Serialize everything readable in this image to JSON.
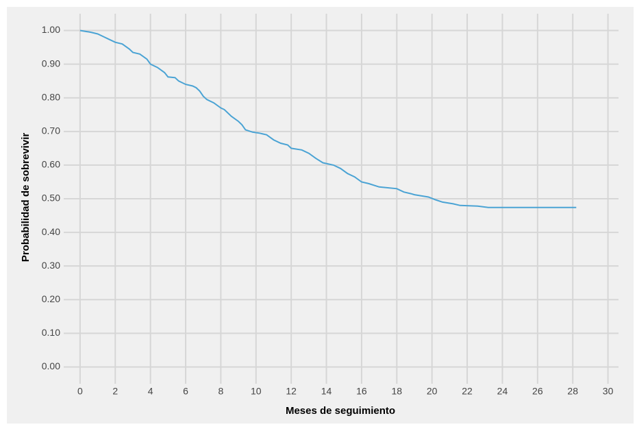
{
  "chart_data": {
    "type": "line",
    "x_label": "Meses de seguimiento",
    "y_label": "Probabilidad de sobrevivir",
    "x": [
      0,
      0.6,
      1,
      1.4,
      1.6,
      2,
      2.4,
      2.8,
      3,
      3.4,
      3.8,
      4,
      4.4,
      4.8,
      5,
      5.4,
      5.6,
      6,
      6.4,
      6.6,
      6.8,
      7,
      7.2,
      7.6,
      8,
      8.2,
      8.6,
      9,
      9.2,
      9.4,
      9.8,
      10.2,
      10.6,
      11,
      11.4,
      11.8,
      12,
      12.6,
      13,
      13.4,
      13.8,
      14.4,
      14.8,
      15.2,
      15.6,
      16,
      16.4,
      17,
      18,
      18.4,
      18.8,
      19,
      19.8,
      20.2,
      20.6,
      21.2,
      21.6,
      22.6,
      23.2,
      28.2
    ],
    "series": [
      {
        "color": "#4aa3d4",
        "values": [
          1.0,
          0.995,
          0.99,
          0.98,
          0.975,
          0.965,
          0.96,
          0.945,
          0.935,
          0.93,
          0.915,
          0.9,
          0.89,
          0.875,
          0.862,
          0.86,
          0.85,
          0.84,
          0.835,
          0.83,
          0.82,
          0.805,
          0.795,
          0.785,
          0.77,
          0.765,
          0.745,
          0.73,
          0.72,
          0.705,
          0.698,
          0.695,
          0.69,
          0.675,
          0.665,
          0.66,
          0.65,
          0.645,
          0.635,
          0.62,
          0.607,
          0.6,
          0.59,
          0.575,
          0.565,
          0.55,
          0.545,
          0.535,
          0.53,
          0.52,
          0.515,
          0.512,
          0.505,
          0.497,
          0.49,
          0.485,
          0.48,
          0.478,
          0.474,
          0.474
        ]
      }
    ],
    "xlim": [
      -0.93,
      30.6
    ],
    "xticks": [
      0,
      2,
      4,
      6,
      8,
      10,
      12,
      14,
      16,
      18,
      20,
      22,
      24,
      26,
      28,
      30
    ],
    "ylim": [
      -0.05,
      1.05
    ],
    "yticks": [
      {
        "value": 0,
        "label": "0.00"
      },
      {
        "value": 0.1,
        "label": "0.10"
      },
      {
        "value": 0.2,
        "label": "0.20"
      },
      {
        "value": 0.3,
        "label": "0.30"
      },
      {
        "value": 0.4,
        "label": "0.40"
      },
      {
        "value": 0.5,
        "label": "0.50"
      },
      {
        "value": 0.6,
        "label": "0.60"
      },
      {
        "value": 0.7,
        "label": "0.70"
      },
      {
        "value": 0.8,
        "label": "0.80"
      },
      {
        "value": 0.9,
        "label": "0.90"
      },
      {
        "value": 1,
        "label": "1.00"
      }
    ],
    "grid": true
  }
}
